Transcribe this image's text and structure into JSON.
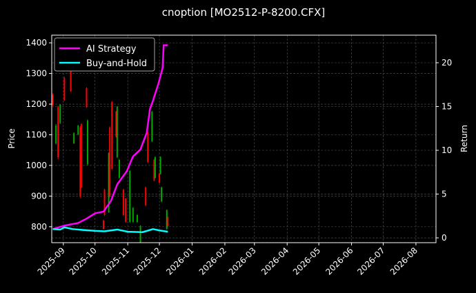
{
  "chart_data": {
    "type": "candlestick+line",
    "title": "cnoption [MO2512-P-8200.CFX]",
    "ylabel_left": "Price",
    "ylabel_right": "Return",
    "xlim": [
      "2025-08-21",
      "2026-08-20"
    ],
    "ylim_left": [
      748,
      1425
    ],
    "ylim_right": [
      -0.55,
      23.15
    ],
    "x_ticks": [
      "2025-09",
      "2025-10",
      "2025-11",
      "2025-12",
      "2026-01",
      "2026-02",
      "2026-03",
      "2026-04",
      "2026-05",
      "2026-06",
      "2026-07",
      "2026-08"
    ],
    "y_ticks_left": [
      800,
      900,
      1000,
      1100,
      1200,
      1300,
      1400
    ],
    "y_ticks_right": [
      0,
      5,
      10,
      15,
      20
    ],
    "grid": true,
    "legend_position": "top-left",
    "colors": {
      "up": "#00aa00",
      "down": "#ff0000",
      "strategy": "#ff00ff",
      "buy_hold": "#00ffff",
      "background": "#000000",
      "grid": "#555555"
    },
    "candles_columns": [
      "date",
      "open",
      "high",
      "low",
      "close"
    ],
    "candles": [
      [
        "2025-08-22",
        1229,
        1235,
        1195,
        1198
      ],
      [
        "2025-08-25",
        1072,
        1135,
        1068,
        1130
      ],
      [
        "2025-08-27",
        1191,
        1195,
        1020,
        1027
      ],
      [
        "2025-08-29",
        1139,
        1200,
        1135,
        1198
      ],
      [
        "2025-09-02",
        1285,
        1290,
        1210,
        1213
      ],
      [
        "2025-09-08",
        1310,
        1312,
        1240,
        1243
      ],
      [
        "2025-09-11",
        1072,
        1108,
        1070,
        1105
      ],
      [
        "2025-09-15",
        1101,
        1132,
        1099,
        1130
      ],
      [
        "2025-09-17",
        1124,
        1128,
        895,
        899
      ],
      [
        "2025-09-18",
        1135,
        1138,
        925,
        928
      ],
      [
        "2025-09-23",
        1252,
        1255,
        1188,
        1191
      ],
      [
        "2025-09-24",
        1004,
        1150,
        1000,
        1146
      ],
      [
        "2025-10-09",
        820,
        823,
        790,
        793
      ],
      [
        "2025-10-10",
        921,
        924,
        835,
        838
      ],
      [
        "2025-10-14",
        847,
        1043,
        845,
        1040
      ],
      [
        "2025-10-15",
        1124,
        1127,
        896,
        899
      ],
      [
        "2025-10-17",
        1207,
        1210,
        986,
        989
      ],
      [
        "2025-10-21",
        1175,
        1178,
        1091,
        1094
      ],
      [
        "2025-10-22",
        1027,
        1194,
        1024,
        1191
      ],
      [
        "2025-10-24",
        960,
        1021,
        957,
        1018
      ],
      [
        "2025-10-28",
        921,
        924,
        835,
        838
      ],
      [
        "2025-10-30",
        892,
        895,
        813,
        816
      ],
      [
        "2025-11-03",
        816,
        985,
        813,
        982
      ],
      [
        "2025-11-06",
        816,
        864,
        813,
        861
      ],
      [
        "2025-11-10",
        816,
        841,
        813,
        838
      ],
      [
        "2025-11-13",
        748,
        805,
        748,
        802
      ],
      [
        "2025-11-18",
        928,
        931,
        867,
        870
      ],
      [
        "2025-11-20",
        1108,
        1111,
        1008,
        1011
      ],
      [
        "2025-11-24",
        1079,
        1178,
        1076,
        1175
      ],
      [
        "2025-11-26",
        1018,
        1021,
        948,
        951
      ],
      [
        "2025-11-27",
        960,
        1030,
        957,
        1027
      ],
      [
        "2025-12-01",
        973,
        976,
        941,
        944
      ],
      [
        "2025-12-02",
        973,
        1030,
        970,
        1027
      ],
      [
        "2025-12-03",
        883,
        931,
        880,
        928
      ],
      [
        "2025-12-08",
        793,
        857,
        790,
        854
      ],
      [
        "2025-12-09",
        831,
        834,
        799,
        802
      ]
    ],
    "series": [
      {
        "name": "AI Strategy",
        "x": [
          "2025-08-22",
          "2025-09-02",
          "2025-09-15",
          "2025-09-23",
          "2025-10-01",
          "2025-10-09",
          "2025-10-16",
          "2025-10-22",
          "2025-10-31",
          "2025-11-06",
          "2025-11-13",
          "2025-11-19",
          "2025-11-22",
          "2025-11-25",
          "2025-11-30",
          "2025-12-04",
          "2025-12-05",
          "2025-12-09"
        ],
        "values": [
          1.0,
          1.4,
          1.7,
          2.2,
          2.8,
          3.0,
          4.2,
          6.1,
          7.6,
          9.3,
          10.1,
          12.0,
          14.7,
          15.7,
          17.6,
          19.4,
          22.0,
          22.0
        ]
      },
      {
        "name": "Buy-and-Hold",
        "x": [
          "2025-08-22",
          "2025-08-29",
          "2025-09-02",
          "2025-09-10",
          "2025-09-20",
          "2025-10-01",
          "2025-10-10",
          "2025-10-22",
          "2025-11-01",
          "2025-11-15",
          "2025-11-25",
          "2025-12-01",
          "2025-12-09"
        ],
        "values": [
          1.0,
          0.95,
          1.2,
          1.0,
          0.9,
          0.8,
          0.75,
          0.95,
          0.7,
          0.65,
          1.0,
          0.85,
          0.7
        ]
      }
    ]
  }
}
